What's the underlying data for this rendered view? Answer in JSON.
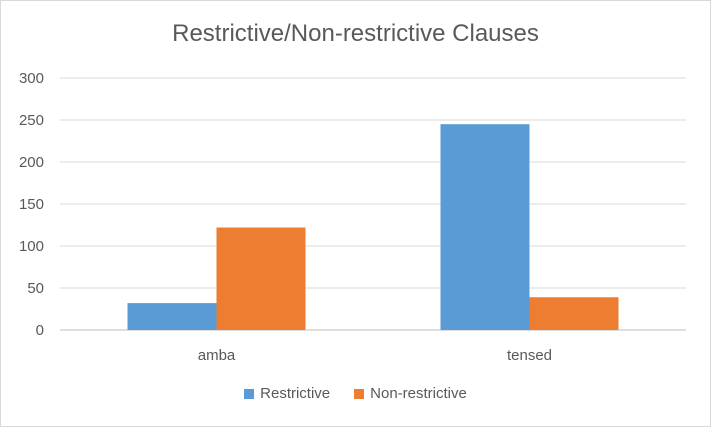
{
  "chart_data": {
    "type": "bar",
    "title": "Restrictive/Non-restrictive Clauses",
    "categories": [
      "amba",
      "tensed"
    ],
    "series": [
      {
        "name": "Restrictive",
        "values": [
          32,
          245
        ],
        "color": "#5b9bd5"
      },
      {
        "name": "Non-restrictive",
        "values": [
          122,
          39
        ],
        "color": "#ed7d31"
      }
    ],
    "ylim": [
      0,
      300
    ],
    "yticks": [
      "0",
      "50",
      "100",
      "150",
      "200",
      "250",
      "300"
    ],
    "grid": true,
    "legend_position": "bottom"
  }
}
